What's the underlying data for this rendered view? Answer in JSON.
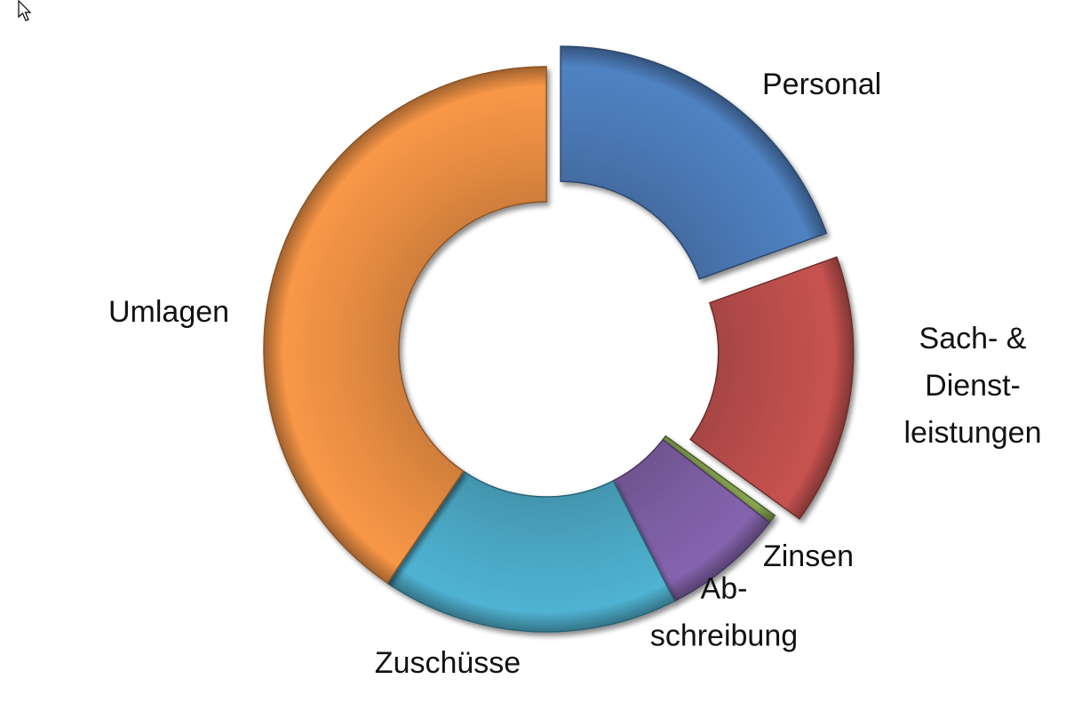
{
  "chart_data": {
    "type": "pie",
    "variant": "donut",
    "exploded": [
      "Personal",
      "Sach- & Dienst- leistungen"
    ],
    "categories": [
      "Personal",
      "Sach- & Dienst- leistungen",
      "Zinsen",
      "Ab- schreibung",
      "Zuschüsse",
      "Umlagen"
    ],
    "values": [
      19.5,
      15.5,
      0.5,
      7,
      17,
      40.5
    ],
    "colors": [
      "#4a78b4",
      "#b84d4a",
      "#7f9a4b",
      "#7b5da1",
      "#4aa6c2",
      "#e68c42"
    ],
    "label_lines": [
      [
        "Personal"
      ],
      [
        "Sach- &",
        "Dienst-",
        "leistungen"
      ],
      [
        "Zinsen"
      ],
      [
        "Ab-",
        "schreibung"
      ],
      [
        "Zuschüsse"
      ],
      [
        "Umlagen"
      ]
    ]
  }
}
